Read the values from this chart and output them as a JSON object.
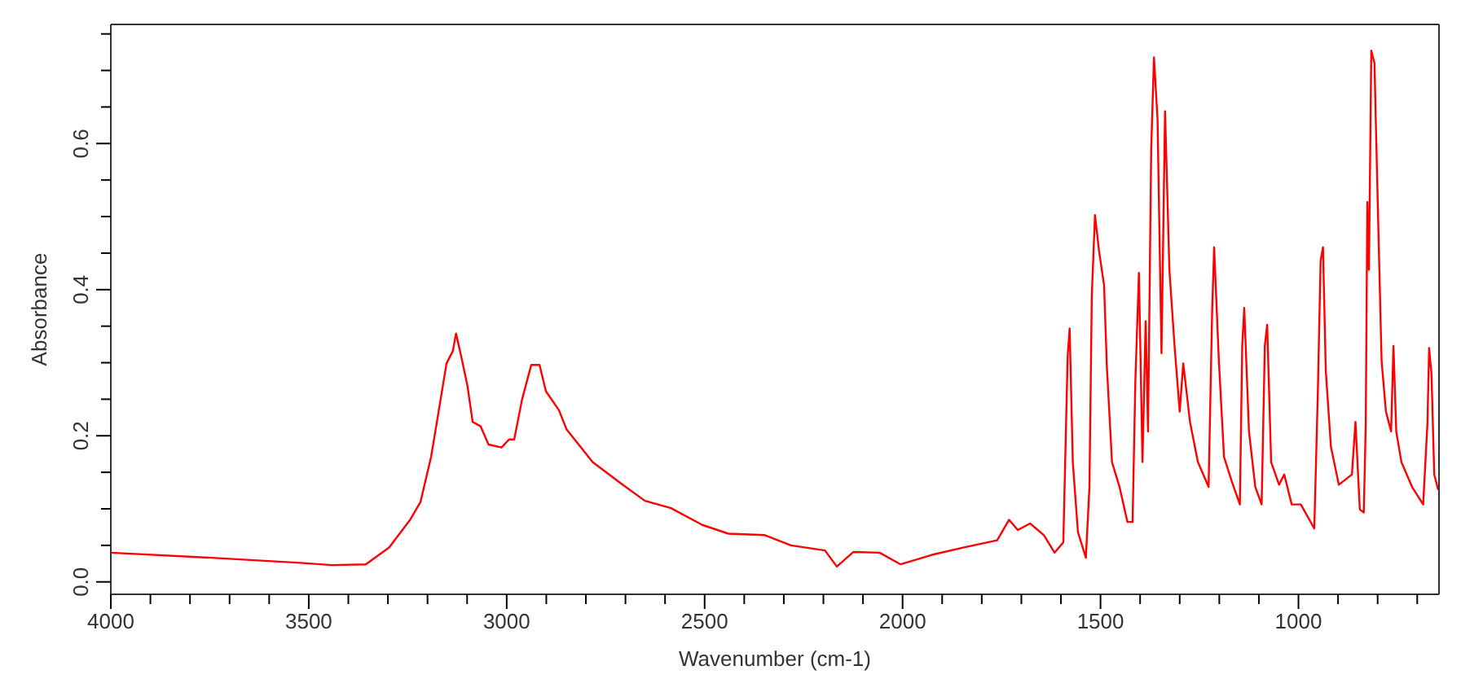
{
  "chart_data": {
    "type": "line",
    "xlabel": "Wavenumber (cm-1)",
    "ylabel": "Absorbance",
    "x": [
      4000,
      3745,
      3521,
      3442,
      3356,
      3297,
      3244,
      3218,
      3191,
      3172,
      3152,
      3136,
      3128,
      3115,
      3099,
      3086,
      3066,
      3046,
      3013,
      2994,
      2981,
      2961,
      2938,
      2917,
      2901,
      2868,
      2849,
      2783,
      2717,
      2651,
      2585,
      2506,
      2440,
      2348,
      2282,
      2196,
      2166,
      2124,
      2058,
      2005,
      1926,
      1847,
      1761,
      1731,
      1709,
      1678,
      1643,
      1616,
      1594,
      1583,
      1578,
      1570,
      1557,
      1537,
      1528,
      1522,
      1514,
      1504,
      1491,
      1484,
      1471,
      1452,
      1432,
      1419,
      1412,
      1403,
      1394,
      1386,
      1380,
      1372,
      1365,
      1356,
      1346,
      1337,
      1326,
      1313,
      1300,
      1291,
      1274,
      1254,
      1227,
      1218,
      1213,
      1201,
      1188,
      1168,
      1148,
      1142,
      1137,
      1125,
      1109,
      1093,
      1085,
      1079,
      1069,
      1049,
      1036,
      1017,
      994,
      960,
      951,
      944,
      938,
      931,
      918,
      898,
      865,
      856,
      845,
      835,
      830,
      826,
      822,
      816,
      808,
      799,
      790,
      779,
      766,
      760,
      753,
      740,
      713,
      685,
      674,
      670,
      664,
      657,
      647
    ],
    "series": [
      {
        "color": "#ff0000",
        "values": [
          0.04,
          0.033,
          0.026,
          0.023,
          0.024,
          0.047,
          0.085,
          0.109,
          0.171,
          0.233,
          0.299,
          0.316,
          0.34,
          0.309,
          0.268,
          0.219,
          0.213,
          0.188,
          0.184,
          0.195,
          0.195,
          0.25,
          0.297,
          0.297,
          0.261,
          0.235,
          0.209,
          0.164,
          0.137,
          0.111,
          0.101,
          0.078,
          0.066,
          0.064,
          0.05,
          0.043,
          0.021,
          0.041,
          0.04,
          0.024,
          0.037,
          0.047,
          0.057,
          0.085,
          0.071,
          0.08,
          0.064,
          0.04,
          0.054,
          0.309,
          0.347,
          0.164,
          0.068,
          0.033,
          0.13,
          0.392,
          0.502,
          0.454,
          0.406,
          0.295,
          0.164,
          0.13,
          0.082,
          0.082,
          0.275,
          0.423,
          0.164,
          0.357,
          0.206,
          0.592,
          0.718,
          0.634,
          0.313,
          0.644,
          0.427,
          0.323,
          0.233,
          0.299,
          0.219,
          0.164,
          0.13,
          0.371,
          0.458,
          0.302,
          0.171,
          0.137,
          0.106,
          0.323,
          0.375,
          0.206,
          0.13,
          0.106,
          0.323,
          0.352,
          0.164,
          0.133,
          0.147,
          0.106,
          0.106,
          0.073,
          0.261,
          0.44,
          0.458,
          0.289,
          0.185,
          0.133,
          0.147,
          0.219,
          0.099,
          0.095,
          0.216,
          0.52,
          0.427,
          0.727,
          0.71,
          0.502,
          0.302,
          0.233,
          0.206,
          0.323,
          0.206,
          0.164,
          0.13,
          0.106,
          0.219,
          0.32,
          0.285,
          0.147,
          0.126
        ]
      }
    ],
    "xlim": [
      4000,
      645
    ],
    "xticks": [
      {
        "value": 700,
        "label": null
      },
      {
        "value": 800,
        "label": null
      },
      {
        "value": 900,
        "label": null
      },
      1000,
      {
        "value": 1100,
        "label": null
      },
      {
        "value": 1200,
        "label": null
      },
      {
        "value": 1300,
        "label": null
      },
      {
        "value": 1400,
        "label": null
      },
      1500,
      {
        "value": 1600,
        "label": null
      },
      {
        "value": 1700,
        "label": null
      },
      {
        "value": 1800,
        "label": null
      },
      {
        "value": 1900,
        "label": null
      },
      2000,
      {
        "value": 2100,
        "label": null
      },
      {
        "value": 2200,
        "label": null
      },
      {
        "value": 2300,
        "label": null
      },
      {
        "value": 2400,
        "label": null
      },
      2500,
      {
        "value": 2600,
        "label": null
      },
      {
        "value": 2700,
        "label": null
      },
      {
        "value": 2800,
        "label": null
      },
      {
        "value": 2900,
        "label": null
      },
      3000,
      {
        "value": 3100,
        "label": null
      },
      {
        "value": 3200,
        "label": null
      },
      {
        "value": 3300,
        "label": null
      },
      {
        "value": 3400,
        "label": null
      },
      3500,
      {
        "value": 3600,
        "label": null
      },
      {
        "value": 3700,
        "label": null
      },
      {
        "value": 3800,
        "label": null
      },
      {
        "value": 3900,
        "label": null
      },
      4000
    ],
    "ylim": [
      -0.017,
      0.763
    ],
    "yticks": [
      {
        "value": 0,
        "label": "0.0"
      },
      {
        "value": 0.05,
        "label": null
      },
      {
        "value": 0.1,
        "label": null
      },
      {
        "value": 0.15,
        "label": null
      },
      0.2,
      {
        "value": 0.25,
        "label": null
      },
      {
        "value": 0.3,
        "label": null
      },
      {
        "value": 0.35,
        "label": null
      },
      0.4,
      {
        "value": 0.45,
        "label": null
      },
      {
        "value": 0.5,
        "label": null
      },
      {
        "value": 0.55,
        "label": null
      },
      0.6,
      {
        "value": 0.65,
        "label": null
      },
      {
        "value": 0.7,
        "label": null
      },
      {
        "value": 0.75,
        "label": null
      }
    ],
    "grid": false,
    "marker": "none",
    "line_style": "solid"
  }
}
